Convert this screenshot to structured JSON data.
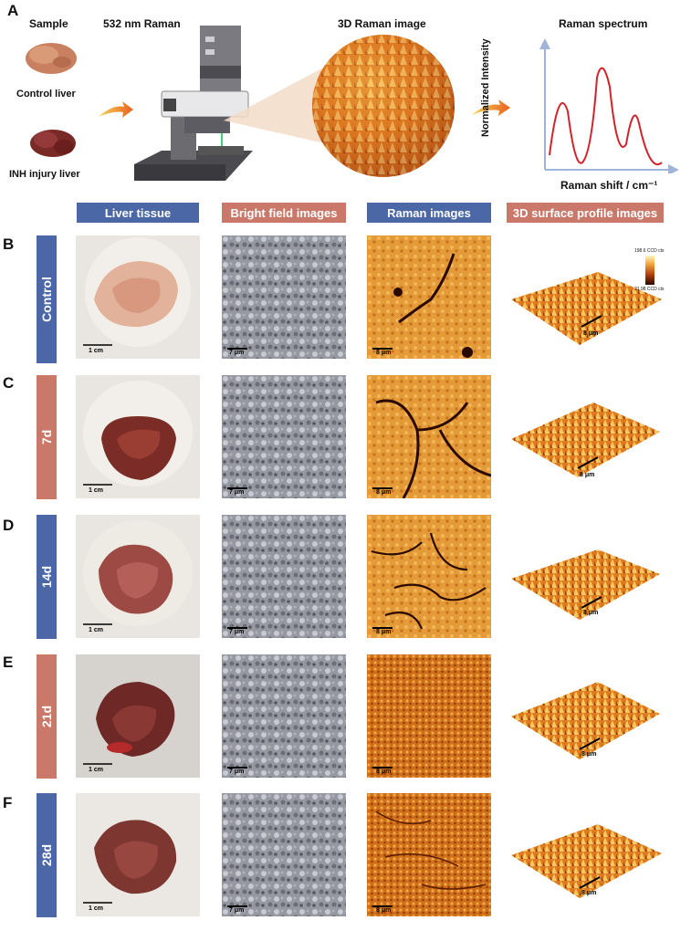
{
  "panel_a": {
    "letter": "A",
    "sample_title": "Sample",
    "control_label": "Control liver",
    "inh_label": "INH injury liver",
    "raman_title": "532 nm Raman",
    "image3d_title": "3D Raman image",
    "spectrum_title": "Raman spectrum",
    "y_axis_label": "Normalized Intensity",
    "x_axis_label": "Raman shift / cm⁻¹"
  },
  "column_headers": [
    "Liver tissue",
    "Bright field images",
    "Raman images",
    "3D surface profile images"
  ],
  "rows": [
    {
      "letter": "B",
      "label": "Control",
      "color": "#4c67a6"
    },
    {
      "letter": "C",
      "label": "7d",
      "color": "#c9786a"
    },
    {
      "letter": "D",
      "label": "14d",
      "color": "#4c67a6"
    },
    {
      "letter": "E",
      "label": "21d",
      "color": "#c9786a"
    },
    {
      "letter": "F",
      "label": "28d",
      "color": "#4c67a6"
    }
  ],
  "scale_tissue": "1 cm",
  "scale_micro": "7 μm",
  "scale_raman": "8 μm",
  "scale_surface": "8 μm",
  "colorbar": {
    "max_label": "198.6 CCD cts",
    "min_label": "21.98 CCD cts"
  }
}
